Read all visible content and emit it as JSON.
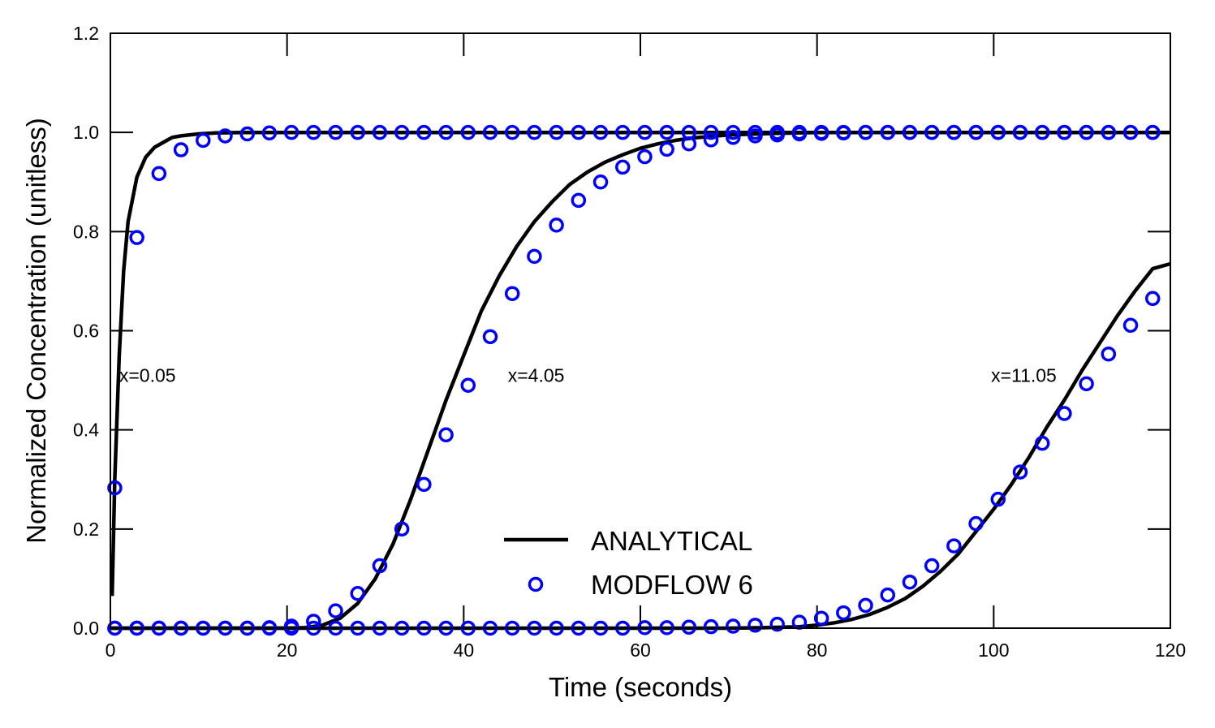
{
  "chart_data": {
    "type": "line",
    "xlabel": "Time (seconds)",
    "ylabel": "Normalized Concentration (unitless)",
    "xlim": [
      0,
      120
    ],
    "ylim": [
      0,
      1.2
    ],
    "x_ticks": [
      "0",
      "20",
      "40",
      "60",
      "80",
      "100",
      "120"
    ],
    "y_ticks": [
      "0.0",
      "0.2",
      "0.4",
      "0.6",
      "0.8",
      "1.0",
      "1.2"
    ],
    "grid": false,
    "legend_position": "bottom-center",
    "colors": {
      "analytical": "#000000",
      "modflow": "#0000ff"
    },
    "legend": [
      {
        "label": "ANALYTICAL",
        "style": "solid-line",
        "color": "#000000"
      },
      {
        "label": "MODFLOW 6",
        "style": "open-circle",
        "color": "#0000ff"
      }
    ],
    "annotations": [
      {
        "text": "x=0.05",
        "x": 1.0,
        "y": 0.51
      },
      {
        "text": "x=4.05",
        "x": 45.0,
        "y": 0.51
      },
      {
        "text": "x=11.05",
        "x": 99.7,
        "y": 0.51
      }
    ],
    "series": [
      {
        "name": "ANALYTICAL",
        "location": "x=0.05",
        "marker": "line",
        "x": [
          0.2,
          0.5,
          1,
          1.5,
          2,
          3,
          4,
          5,
          6,
          7,
          8,
          10,
          12,
          15,
          20,
          30,
          50,
          80,
          120
        ],
        "y": [
          0.065,
          0.3,
          0.55,
          0.72,
          0.82,
          0.91,
          0.95,
          0.97,
          0.98,
          0.99,
          0.993,
          0.997,
          0.999,
          1.0,
          1.0,
          1.0,
          1.0,
          1.0,
          1.0
        ]
      },
      {
        "name": "ANALYTICAL",
        "location": "x=4.05",
        "marker": "line",
        "x": [
          0,
          20,
          22,
          24,
          26,
          28,
          30,
          32,
          34,
          36,
          38,
          40,
          42,
          44,
          46,
          48,
          50,
          52,
          54,
          56,
          58,
          60,
          62,
          64,
          66,
          68,
          70,
          75,
          80,
          120
        ],
        "y": [
          0.0,
          0.0,
          0.001,
          0.006,
          0.02,
          0.05,
          0.1,
          0.17,
          0.26,
          0.36,
          0.46,
          0.55,
          0.64,
          0.71,
          0.77,
          0.82,
          0.86,
          0.895,
          0.92,
          0.94,
          0.955,
          0.968,
          0.977,
          0.984,
          0.989,
          0.992,
          0.995,
          0.998,
          1.0,
          1.0
        ]
      },
      {
        "name": "ANALYTICAL",
        "location": "x=11.05",
        "marker": "line",
        "x": [
          0,
          70,
          74,
          78,
          80,
          82,
          84,
          86,
          88,
          90,
          92,
          94,
          96,
          98,
          100,
          102,
          104,
          106,
          108,
          110,
          112,
          114,
          116,
          118,
          120
        ],
        "y": [
          0.0,
          0.0,
          0.001,
          0.003,
          0.006,
          0.011,
          0.018,
          0.028,
          0.042,
          0.06,
          0.085,
          0.115,
          0.15,
          0.195,
          0.24,
          0.29,
          0.345,
          0.405,
          0.46,
          0.52,
          0.575,
          0.63,
          0.68,
          0.725,
          0.735
        ]
      },
      {
        "name": "MODFLOW 6",
        "location": "x=0.05",
        "marker": "open-circle",
        "x": [
          0.5,
          3.0,
          5.5,
          8.0,
          10.5,
          13.0,
          15.5,
          18.0,
          20.5,
          23.0,
          25.5,
          28.0,
          30.5,
          33.0,
          35.5,
          38.0,
          40.5,
          43.0,
          45.5,
          48.0,
          50.5,
          53.0,
          55.5,
          58.0,
          60.5,
          63.0,
          65.5,
          68.0,
          70.5,
          73.0,
          75.5,
          78.0,
          80.5,
          83.0,
          85.5,
          88.0,
          90.5,
          93.0,
          95.5,
          98.0,
          100.5,
          103.0,
          105.5,
          108.0,
          110.5,
          113.0,
          115.5,
          118.0
        ],
        "y": [
          0.283,
          0.788,
          0.917,
          0.965,
          0.984,
          0.993,
          0.997,
          0.999,
          1.0,
          1.0,
          1.0,
          1.0,
          1.0,
          1.0,
          1.0,
          1.0,
          1.0,
          1.0,
          1.0,
          1.0,
          1.0,
          1.0,
          1.0,
          1.0,
          1.0,
          1.0,
          1.0,
          1.0,
          1.0,
          1.0,
          1.0,
          1.0,
          1.0,
          1.0,
          1.0,
          1.0,
          1.0,
          1.0,
          1.0,
          1.0,
          1.0,
          1.0,
          1.0,
          1.0,
          1.0,
          1.0,
          1.0,
          1.0
        ]
      },
      {
        "name": "MODFLOW 6",
        "location": "x=4.05",
        "marker": "open-circle",
        "x": [
          0.5,
          3.0,
          5.5,
          8.0,
          10.5,
          13.0,
          15.5,
          18.0,
          20.5,
          23.0,
          25.5,
          28.0,
          30.5,
          33.0,
          35.5,
          38.0,
          40.5,
          43.0,
          45.5,
          48.0,
          50.5,
          53.0,
          55.5,
          58.0,
          60.5,
          63.0,
          65.5,
          68.0,
          70.5,
          73.0,
          75.5,
          78.0,
          80.5,
          83.0,
          85.5,
          88.0,
          90.5,
          93.0,
          95.5,
          98.0,
          100.5,
          103.0,
          105.5,
          108.0,
          110.5,
          113.0,
          115.5,
          118.0
        ],
        "y": [
          0.0,
          0.0,
          0.0,
          0.0,
          0.0,
          0.0,
          0.0,
          0.001,
          0.004,
          0.014,
          0.035,
          0.07,
          0.126,
          0.2,
          0.29,
          0.39,
          0.49,
          0.588,
          0.675,
          0.75,
          0.813,
          0.863,
          0.9,
          0.93,
          0.951,
          0.966,
          0.977,
          0.985,
          0.99,
          0.993,
          0.995,
          0.997,
          0.998,
          0.999,
          1.0,
          1.0,
          1.0,
          1.0,
          1.0,
          1.0,
          1.0,
          1.0,
          1.0,
          1.0,
          1.0,
          1.0,
          1.0,
          1.0
        ]
      },
      {
        "name": "MODFLOW 6",
        "location": "x=11.05",
        "marker": "open-circle",
        "x": [
          0.5,
          3.0,
          5.5,
          8.0,
          10.5,
          13.0,
          15.5,
          18.0,
          20.5,
          23.0,
          25.5,
          28.0,
          30.5,
          33.0,
          35.5,
          38.0,
          40.5,
          43.0,
          45.5,
          48.0,
          50.5,
          53.0,
          55.5,
          58.0,
          60.5,
          63.0,
          65.5,
          68.0,
          70.5,
          73.0,
          75.5,
          78.0,
          80.5,
          83.0,
          85.5,
          88.0,
          90.5,
          93.0,
          95.5,
          98.0,
          100.5,
          103.0,
          105.5,
          108.0,
          110.5,
          113.0,
          115.5,
          118.0
        ],
        "y": [
          0.0,
          0.0,
          0.0,
          0.0,
          0.0,
          0.0,
          0.0,
          0.0,
          0.0,
          0.0,
          0.0,
          0.0,
          0.0,
          0.0,
          0.0,
          0.0,
          0.0,
          0.0,
          0.0,
          0.0,
          0.0,
          0.0,
          0.0,
          0.0,
          0.001,
          0.001,
          0.002,
          0.003,
          0.004,
          0.006,
          0.008,
          0.012,
          0.02,
          0.031,
          0.046,
          0.067,
          0.093,
          0.126,
          0.166,
          0.211,
          0.26,
          0.315,
          0.373,
          0.433,
          0.493,
          0.553,
          0.611,
          0.665
        ]
      }
    ]
  }
}
